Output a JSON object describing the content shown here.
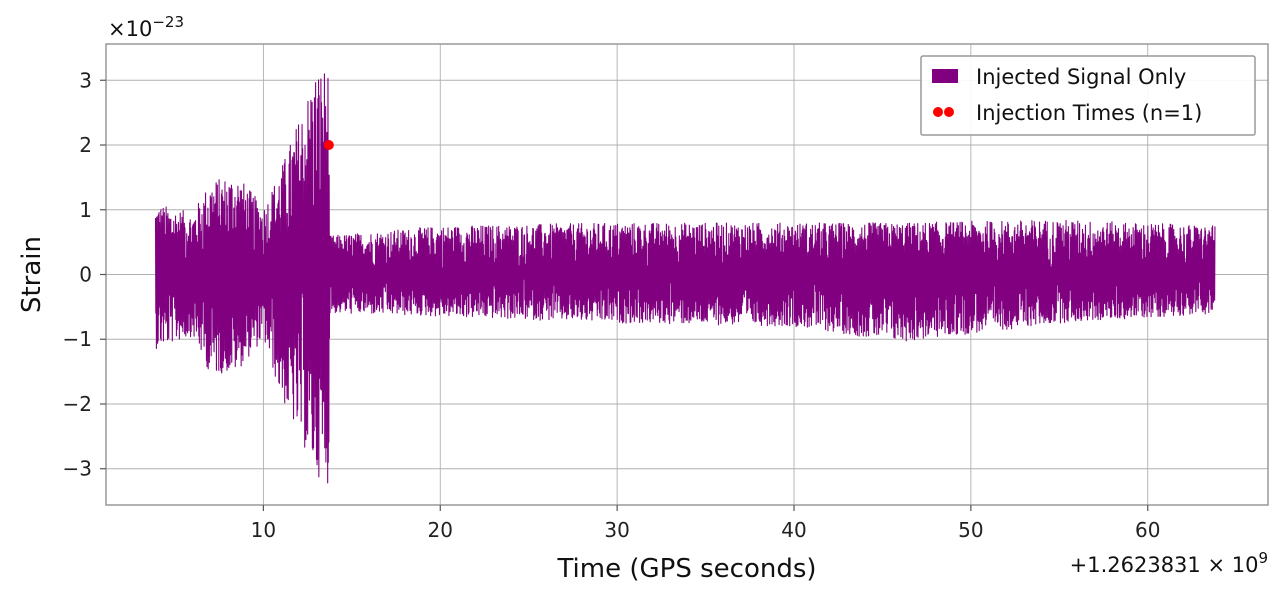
{
  "chart_data": {
    "type": "line",
    "title": "",
    "xlabel": "Time (GPS seconds)",
    "ylabel": "Strain",
    "x_offset_text": "+1.2623831 × 10",
    "x_offset_exp": "9",
    "y_scale_text": "×10",
    "y_scale_exp": "−23",
    "xlim": [
      1.1,
      66.8
    ],
    "ylim": [
      -3.56,
      3.56
    ],
    "x_ticks": [
      {
        "value": 10,
        "label": "10"
      },
      {
        "value": 20,
        "label": "20"
      },
      {
        "value": 30,
        "label": "30"
      },
      {
        "value": 40,
        "label": "40"
      },
      {
        "value": 50,
        "label": "50"
      },
      {
        "value": 60,
        "label": "60"
      }
    ],
    "y_ticks": [
      {
        "value": 3,
        "label": "3"
      },
      {
        "value": 2,
        "label": "2"
      },
      {
        "value": 1,
        "label": "1"
      },
      {
        "value": 0,
        "label": "0"
      },
      {
        "value": -1,
        "label": "−1"
      },
      {
        "value": -2,
        "label": "−2"
      },
      {
        "value": -3,
        "label": "−3"
      }
    ],
    "grid": true,
    "legend_position": "top-right",
    "series": [
      {
        "name": "Injected Signal Only",
        "kind": "line",
        "color": "#800080",
        "x_range": [
          3.9,
          63.8
        ],
        "envelope": [
          {
            "x": 3.9,
            "upper": 1.1,
            "lower": -1.15
          },
          {
            "x": 6.0,
            "upper": 0.95,
            "lower": -0.95
          },
          {
            "x": 7.0,
            "upper": 1.45,
            "lower": -1.55
          },
          {
            "x": 8.5,
            "upper": 1.55,
            "lower": -1.5
          },
          {
            "x": 10.0,
            "upper": 1.05,
            "lower": -1.0
          },
          {
            "x": 11.0,
            "upper": 1.65,
            "lower": -1.9
          },
          {
            "x": 12.0,
            "upper": 2.4,
            "lower": -2.5
          },
          {
            "x": 13.0,
            "upper": 3.2,
            "lower": -3.1
          },
          {
            "x": 13.7,
            "upper": 3.22,
            "lower": -3.25
          },
          {
            "x": 13.75,
            "upper": 0.6,
            "lower": -0.6
          },
          {
            "x": 20.0,
            "upper": 0.75,
            "lower": -0.65
          },
          {
            "x": 30.0,
            "upper": 0.8,
            "lower": -0.75
          },
          {
            "x": 40.0,
            "upper": 0.8,
            "lower": -0.8
          },
          {
            "x": 46.0,
            "upper": 0.8,
            "lower": -1.05
          },
          {
            "x": 55.0,
            "upper": 0.85,
            "lower": -0.75
          },
          {
            "x": 63.8,
            "upper": 0.75,
            "lower": -0.6
          }
        ]
      },
      {
        "name": "Injection Times (n=1)",
        "kind": "scatter",
        "color": "#ff0000",
        "points": [
          {
            "x": 13.7,
            "y": 2.0
          }
        ]
      }
    ]
  }
}
